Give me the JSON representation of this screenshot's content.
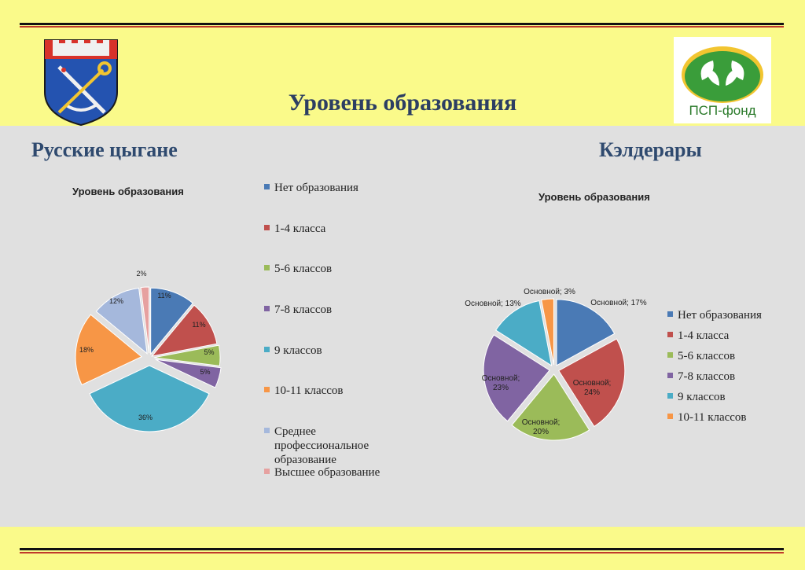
{
  "slide": {
    "title": "Уровень образования",
    "left_group": "Русские цыгане",
    "right_group": "Кэлдерары",
    "fund_logo_text": "ПСП-фонд"
  },
  "colors": {
    "background": "#fafa8a",
    "panel": "#e0e0e0",
    "title": "#2c3e63"
  },
  "chart_data": [
    {
      "type": "pie",
      "title": "Уровень образования",
      "legend_position": "right",
      "categories": [
        "Нет образования",
        "1-4 класса",
        "5-6 классов",
        "7-8 классов",
        "9 классов",
        "10-11 классов",
        "Среднее профессиональное образование",
        "Высшее образование"
      ],
      "values": [
        11,
        11,
        5,
        5,
        36,
        18,
        12,
        2
      ],
      "labels": [
        "11%",
        "11%",
        "5%",
        "5%",
        "36%",
        "18%",
        "12%",
        "2%"
      ],
      "colors": [
        "#4a7ab5",
        "#c0504d",
        "#9bbb59",
        "#8064a2",
        "#4bacc6",
        "#f79646",
        "#a5b8dc",
        "#e6a1a0"
      ]
    },
    {
      "type": "pie",
      "title": "Уровень образования",
      "legend_position": "right",
      "categories": [
        "Нет образования",
        "1-4 класса",
        "5-6 классов",
        "7-8 классов",
        "9 классов",
        "10-11 классов"
      ],
      "values": [
        17,
        24,
        20,
        23,
        13,
        3
      ],
      "labels": [
        "Основной; 17%",
        "Основной; 24%",
        "Основной; 20%",
        "Основной; 23%",
        "Основной; 13%",
        "Основной; 3%"
      ],
      "colors": [
        "#4a7ab5",
        "#c0504d",
        "#9bbb59",
        "#8064a2",
        "#4bacc6",
        "#f79646"
      ]
    }
  ]
}
